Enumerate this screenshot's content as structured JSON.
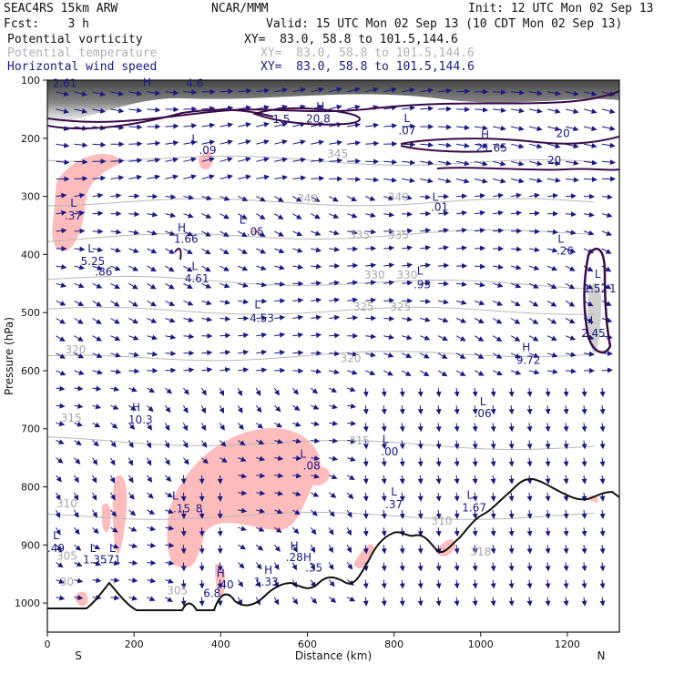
{
  "header": {
    "model": "SEAC4RS 15km ARW",
    "org": "NCAR/MMM",
    "init": "Init: 12 UTC Mon 02 Sep 13",
    "fcst": "Fcst:    3 h",
    "valid": "Valid: 15 UTC Mon 02 Sep 13 (10 CDT Mon 02 Sep 13)",
    "fields": [
      {
        "name": "Potential vorticity",
        "xy": "XY=  83.0, 58.8 to 101.5,144.6",
        "color": "#111111"
      },
      {
        "name": "Potential temperature",
        "xy": "XY=  83.0, 58.8 to 101.5,144.6",
        "color": "#b0b0b0"
      },
      {
        "name": "Horizontal wind speed",
        "xy": "XY=  83.0, 58.8 to 101.5,144.6",
        "color": "#1a1a80"
      }
    ]
  },
  "chart_data": {
    "type": "cross-section",
    "xlabel": "Distance (km)",
    "ylabel": "Pressure (hPa)",
    "xlim": [
      0,
      1320
    ],
    "ylim": [
      1050,
      100
    ],
    "x_ticks": [
      "0",
      "200",
      "400",
      "600",
      "800",
      "1000",
      "1200"
    ],
    "y_ticks": [
      "100",
      "200",
      "300",
      "400",
      "500",
      "600",
      "700",
      "800",
      "900",
      "1000"
    ],
    "x_end_labels": {
      "left": "S",
      "right": "N"
    },
    "theta_labels": [
      {
        "text": "345",
        "x": 670,
        "p": 233
      },
      {
        "text": "340",
        "x": 600,
        "p": 310
      },
      {
        "text": "340",
        "x": 810,
        "p": 308
      },
      {
        "text": "335",
        "x": 720,
        "p": 373
      },
      {
        "text": "335",
        "x": 810,
        "p": 373
      },
      {
        "text": "330",
        "x": 755,
        "p": 442
      },
      {
        "text": "330",
        "x": 830,
        "p": 442
      },
      {
        "text": "325",
        "x": 730,
        "p": 497
      },
      {
        "text": "325",
        "x": 815,
        "p": 497
      },
      {
        "text": "320",
        "x": 65,
        "p": 570
      },
      {
        "text": "320",
        "x": 700,
        "p": 585
      },
      {
        "text": "315",
        "x": 55,
        "p": 688
      },
      {
        "text": "315",
        "x": 720,
        "p": 727
      },
      {
        "text": "310",
        "x": 45,
        "p": 835
      },
      {
        "text": "310",
        "x": 910,
        "p": 865
      },
      {
        "text": "305",
        "x": 45,
        "p": 925
      },
      {
        "text": "30",
        "x": 45,
        "p": 970
      },
      {
        "text": "305",
        "x": 300,
        "p": 985
      },
      {
        "text": "318",
        "x": 1000,
        "p": 918
      }
    ],
    "extrema_labels": [
      {
        "text": "2.61",
        "x": 40,
        "p": 112
      },
      {
        "text": "L",
        "x": 60,
        "p": 318
      },
      {
        "text": ".37",
        "x": 60,
        "p": 340
      },
      {
        "text": "L",
        "x": 100,
        "p": 396
      },
      {
        "text": "5.25",
        "x": 105,
        "p": 418
      },
      {
        "text": ".86",
        "x": 130,
        "p": 436
      },
      {
        "text": "H",
        "x": 230,
        "p": 110
      },
      {
        "text": "4.6",
        "x": 340,
        "p": 112
      },
      {
        "text": "L",
        "x": 340,
        "p": 207
      },
      {
        "text": ".09",
        "x": 370,
        "p": 227
      },
      {
        "text": "H",
        "x": 310,
        "p": 360
      },
      {
        "text": "1.66",
        "x": 320,
        "p": 380
      },
      {
        "text": "L",
        "x": 340,
        "p": 427
      },
      {
        "text": "4.61",
        "x": 345,
        "p": 448
      },
      {
        "text": "L",
        "x": 450,
        "p": 347
      },
      {
        "text": ".05",
        "x": 480,
        "p": 367
      },
      {
        "text": "L",
        "x": 485,
        "p": 493
      },
      {
        "text": "4.53",
        "x": 495,
        "p": 516
      },
      {
        "text": "1.5",
        "x": 540,
        "p": 174
      },
      {
        "text": "H",
        "x": 630,
        "p": 152
      },
      {
        "text": "20.8",
        "x": 625,
        "p": 173
      },
      {
        "text": "L",
        "x": 830,
        "p": 172
      },
      {
        "text": ".07",
        "x": 830,
        "p": 193
      },
      {
        "text": "H",
        "x": 1010,
        "p": 200
      },
      {
        "text": "21.65",
        "x": 1025,
        "p": 223
      },
      {
        "text": "20",
        "x": 1190,
        "p": 198
      },
      {
        "text": "20",
        "x": 1170,
        "p": 244
      },
      {
        "text": "L",
        "x": 895,
        "p": 308
      },
      {
        "text": ".01",
        "x": 905,
        "p": 325
      },
      {
        "text": "L",
        "x": 1185,
        "p": 380
      },
      {
        "text": ".26",
        "x": 1195,
        "p": 400
      },
      {
        "text": "L",
        "x": 860,
        "p": 435
      },
      {
        "text": ".93",
        "x": 865,
        "p": 458
      },
      {
        "text": "L",
        "x": 1270,
        "p": 440
      },
      {
        "text": "1.52",
        "x": 1265,
        "p": 465
      },
      {
        "text": "1",
        "x": 1305,
        "p": 465
      },
      {
        "text": "H",
        "x": 1250,
        "p": 520
      },
      {
        "text": "2.45",
        "x": 1260,
        "p": 542
      },
      {
        "text": "H",
        "x": 1105,
        "p": 566
      },
      {
        "text": "9.72",
        "x": 1110,
        "p": 588
      },
      {
        "text": "L",
        "x": 1005,
        "p": 660
      },
      {
        "text": ".06",
        "x": 1005,
        "p": 680
      },
      {
        "text": "H",
        "x": 205,
        "p": 670
      },
      {
        "text": "10.3",
        "x": 215,
        "p": 691
      },
      {
        "text": "L",
        "x": 780,
        "p": 725
      },
      {
        "text": ".00",
        "x": 790,
        "p": 746
      },
      {
        "text": "L",
        "x": 590,
        "p": 750
      },
      {
        "text": ".08",
        "x": 610,
        "p": 770
      },
      {
        "text": "L",
        "x": 295,
        "p": 822
      },
      {
        "text": ".15",
        "x": 310,
        "p": 844
      },
      {
        "text": "8",
        "x": 350,
        "p": 844
      },
      {
        "text": "L",
        "x": 800,
        "p": 815
      },
      {
        "text": ".37",
        "x": 800,
        "p": 837
      },
      {
        "text": "L",
        "x": 975,
        "p": 820
      },
      {
        "text": "1.67",
        "x": 985,
        "p": 842
      },
      {
        "text": "L",
        "x": 20,
        "p": 890
      },
      {
        "text": ".49",
        "x": 20,
        "p": 912
      },
      {
        "text": "L",
        "x": 105,
        "p": 912
      },
      {
        "text": "1.35",
        "x": 110,
        "p": 932
      },
      {
        "text": "L",
        "x": 150,
        "p": 912
      },
      {
        "text": ".71",
        "x": 150,
        "p": 932
      },
      {
        "text": "H",
        "x": 570,
        "p": 908
      },
      {
        "text": ".28",
        "x": 570,
        "p": 928
      },
      {
        "text": "H",
        "x": 600,
        "p": 928
      },
      {
        "text": ".35",
        "x": 615,
        "p": 946
      },
      {
        "text": "H",
        "x": 510,
        "p": 950
      },
      {
        "text": "1.33",
        "x": 505,
        "p": 970
      },
      {
        "text": "H",
        "x": 400,
        "p": 955
      },
      {
        "text": ".40",
        "x": 410,
        "p": 975
      },
      {
        "text": "6.8",
        "x": 380,
        "p": 990
      }
    ],
    "pv_shading_color": "#ffbcbc",
    "contour_color": "#3a0a4a",
    "wind_color": "#1a1a80",
    "theta_color": "#b0b0b0"
  }
}
